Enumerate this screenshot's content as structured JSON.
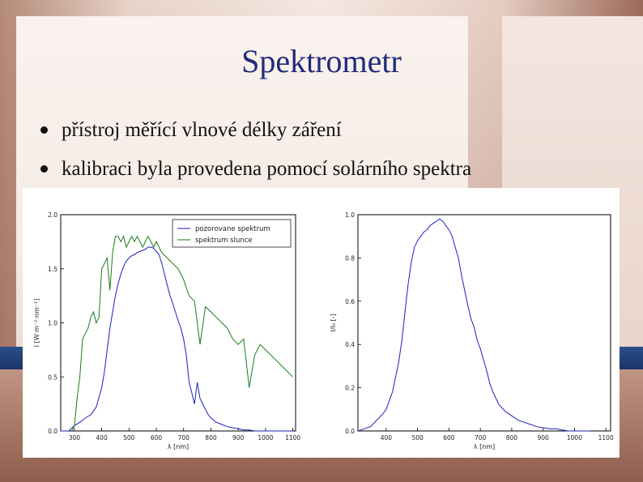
{
  "slide": {
    "title": "Spektrometr",
    "bullets": [
      "přístroj měřící vlnové délky záření",
      "kalibraci byla provedena pomocí solárního spektra"
    ]
  },
  "chart_data": [
    {
      "type": "line",
      "xlabel": "λ [nm]",
      "ylabel": "I [W·m⁻²·nm⁻¹]",
      "xlim": [
        250,
        1110
      ],
      "ylim": [
        0,
        2.0
      ],
      "xticks": [
        300,
        400,
        500,
        600,
        700,
        800,
        900,
        1000,
        1100
      ],
      "yticks": [
        0.0,
        0.5,
        1.0,
        1.5,
        2.0
      ],
      "legend_position": "top-right",
      "series": [
        {
          "name": "pozorovane spektrum",
          "color": "#1f1fbf",
          "x": [
            250,
            280,
            300,
            320,
            340,
            360,
            380,
            400,
            410,
            420,
            430,
            440,
            450,
            460,
            470,
            480,
            490,
            500,
            510,
            520,
            530,
            540,
            550,
            560,
            570,
            580,
            590,
            600,
            610,
            620,
            630,
            640,
            650,
            660,
            670,
            680,
            690,
            700,
            710,
            720,
            730,
            740,
            750,
            760,
            770,
            780,
            790,
            800,
            820,
            840,
            860,
            880,
            900,
            920,
            940,
            960,
            980,
            1000,
            1050,
            1100
          ],
          "y": [
            0.0,
            0.0,
            0.05,
            0.08,
            0.12,
            0.15,
            0.22,
            0.4,
            0.55,
            0.75,
            0.95,
            1.1,
            1.25,
            1.36,
            1.45,
            1.52,
            1.57,
            1.6,
            1.62,
            1.63,
            1.65,
            1.66,
            1.67,
            1.68,
            1.7,
            1.7,
            1.69,
            1.66,
            1.63,
            1.55,
            1.45,
            1.35,
            1.25,
            1.18,
            1.1,
            1.02,
            0.95,
            0.85,
            0.7,
            0.45,
            0.35,
            0.25,
            0.45,
            0.3,
            0.25,
            0.2,
            0.15,
            0.12,
            0.08,
            0.06,
            0.04,
            0.03,
            0.02,
            0.01,
            0.01,
            0.0,
            0.0,
            0.0,
            0.0,
            0.0
          ]
        },
        {
          "name": "spektrum slunce",
          "color": "#1a7a1a",
          "x": [
            290,
            300,
            310,
            320,
            330,
            340,
            350,
            360,
            370,
            380,
            390,
            400,
            410,
            420,
            430,
            440,
            450,
            460,
            470,
            480,
            490,
            500,
            510,
            520,
            530,
            540,
            550,
            560,
            570,
            580,
            590,
            600,
            620,
            640,
            660,
            680,
            700,
            720,
            740,
            760,
            780,
            800,
            820,
            840,
            860,
            880,
            900,
            920,
            940,
            960,
            980,
            1000,
            1020,
            1040,
            1060,
            1080,
            1100
          ],
          "y": [
            0.0,
            0.05,
            0.3,
            0.5,
            0.85,
            0.9,
            0.95,
            1.05,
            1.1,
            1.0,
            1.05,
            1.5,
            1.55,
            1.6,
            1.3,
            1.65,
            1.8,
            1.8,
            1.75,
            1.8,
            1.7,
            1.75,
            1.8,
            1.75,
            1.8,
            1.75,
            1.7,
            1.75,
            1.8,
            1.75,
            1.7,
            1.75,
            1.65,
            1.6,
            1.55,
            1.5,
            1.4,
            1.25,
            1.2,
            0.8,
            1.15,
            1.1,
            1.05,
            1.0,
            0.95,
            0.85,
            0.8,
            0.85,
            0.4,
            0.7,
            0.8,
            0.75,
            0.7,
            0.65,
            0.6,
            0.55,
            0.5
          ]
        }
      ]
    },
    {
      "type": "line",
      "xlabel": "λ [nm]",
      "ylabel": "I/I₀ [-]",
      "xlim": [
        310,
        1115
      ],
      "ylim": [
        0,
        1.0
      ],
      "xticks": [
        400,
        500,
        600,
        700,
        800,
        900,
        1000,
        1100
      ],
      "yticks": [
        0.0,
        0.2,
        0.4,
        0.6,
        0.8,
        1.0
      ],
      "series": [
        {
          "color": "#1f1fbf",
          "x": [
            310,
            330,
            350,
            370,
            390,
            400,
            410,
            420,
            430,
            440,
            450,
            460,
            470,
            480,
            490,
            500,
            510,
            520,
            530,
            540,
            550,
            560,
            570,
            580,
            590,
            600,
            610,
            620,
            630,
            640,
            650,
            660,
            670,
            680,
            690,
            700,
            710,
            720,
            730,
            740,
            750,
            760,
            780,
            800,
            820,
            840,
            860,
            880,
            900,
            920,
            940,
            960,
            980,
            1000,
            1020,
            1050
          ],
          "y": [
            0.0,
            0.01,
            0.02,
            0.05,
            0.08,
            0.1,
            0.14,
            0.18,
            0.25,
            0.32,
            0.42,
            0.55,
            0.68,
            0.78,
            0.85,
            0.88,
            0.9,
            0.92,
            0.93,
            0.95,
            0.96,
            0.97,
            0.98,
            0.97,
            0.95,
            0.93,
            0.9,
            0.85,
            0.8,
            0.72,
            0.65,
            0.58,
            0.52,
            0.48,
            0.42,
            0.38,
            0.33,
            0.28,
            0.22,
            0.18,
            0.15,
            0.12,
            0.09,
            0.07,
            0.05,
            0.04,
            0.03,
            0.02,
            0.015,
            0.01,
            0.01,
            0.005,
            0.0,
            0.0,
            0.0,
            0.0
          ]
        }
      ]
    }
  ]
}
